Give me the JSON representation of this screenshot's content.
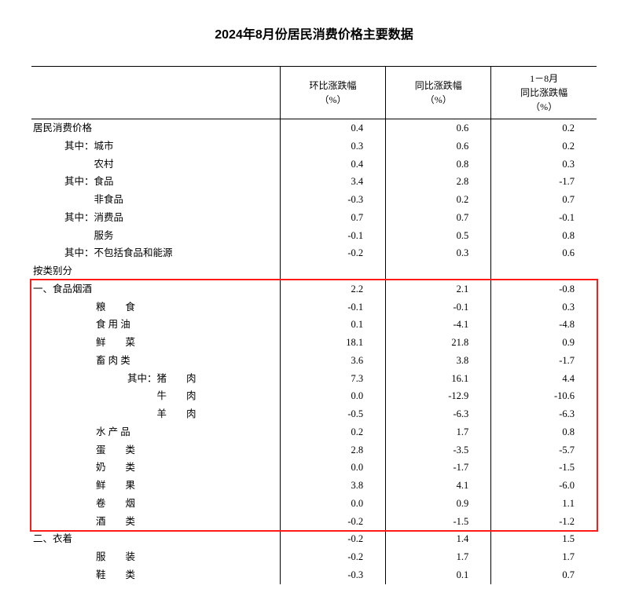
{
  "title": "2024年8月份居民消费价格主要数据",
  "columns": [
    "环比涨跌幅\n（%）",
    "同比涨跌幅\n（%）",
    "1－8月\n同比涨跌幅\n（%）"
  ],
  "rows": [
    {
      "label": "居民消费价格",
      "indent": 0,
      "v": [
        "0.4",
        "0.6",
        "0.2"
      ]
    },
    {
      "label": "其中：城市",
      "indent": 1,
      "v": [
        "0.3",
        "0.6",
        "0.2"
      ]
    },
    {
      "label": "　　　农村",
      "indent": 1,
      "v": [
        "0.4",
        "0.8",
        "0.3"
      ]
    },
    {
      "label": "其中：食品",
      "indent": 1,
      "v": [
        "3.4",
        "2.8",
        "-1.7"
      ]
    },
    {
      "label": "　　　非食品",
      "indent": 1,
      "v": [
        "-0.3",
        "0.2",
        "0.7"
      ]
    },
    {
      "label": "其中：消费品",
      "indent": 1,
      "v": [
        "0.7",
        "0.7",
        "-0.1"
      ]
    },
    {
      "label": "　　　服务",
      "indent": 1,
      "v": [
        "-0.1",
        "0.5",
        "0.8"
      ]
    },
    {
      "label": "其中：不包括食品和能源",
      "indent": 1,
      "v": [
        "-0.2",
        "0.3",
        "0.6"
      ]
    },
    {
      "label": "按类别分",
      "indent": 0,
      "v": [
        "",
        "",
        ""
      ]
    },
    {
      "label": "一、食品烟酒",
      "indent": 0,
      "v": [
        "2.2",
        "2.1",
        "-0.8"
      ]
    },
    {
      "label": "粮　　食",
      "indent": 2,
      "v": [
        "-0.1",
        "-0.1",
        "0.3"
      ]
    },
    {
      "label": "食 用 油",
      "indent": 2,
      "v": [
        "0.1",
        "-4.1",
        "-4.8"
      ]
    },
    {
      "label": "鲜　　菜",
      "indent": 2,
      "v": [
        "18.1",
        "21.8",
        "0.9"
      ]
    },
    {
      "label": "畜 肉 类",
      "indent": 2,
      "v": [
        "3.6",
        "3.8",
        "-1.7"
      ]
    },
    {
      "label": "其中：猪　　肉",
      "indent": 3,
      "v": [
        "7.3",
        "16.1",
        "4.4"
      ]
    },
    {
      "label": "　　　牛　　肉",
      "indent": 3,
      "v": [
        "0.0",
        "-12.9",
        "-10.6"
      ]
    },
    {
      "label": "　　　羊　　肉",
      "indent": 3,
      "v": [
        "-0.5",
        "-6.3",
        "-6.3"
      ]
    },
    {
      "label": "水 产 品",
      "indent": 2,
      "v": [
        "0.2",
        "1.7",
        "0.8"
      ]
    },
    {
      "label": "蛋　　类",
      "indent": 2,
      "v": [
        "2.8",
        "-3.5",
        "-5.7"
      ]
    },
    {
      "label": "奶　　类",
      "indent": 2,
      "v": [
        "0.0",
        "-1.7",
        "-1.5"
      ]
    },
    {
      "label": "鲜　　果",
      "indent": 2,
      "v": [
        "3.8",
        "4.1",
        "-6.0"
      ]
    },
    {
      "label": "卷　　烟",
      "indent": 2,
      "v": [
        "0.0",
        "0.9",
        "1.1"
      ]
    },
    {
      "label": "酒　　类",
      "indent": 2,
      "v": [
        "-0.2",
        "-1.5",
        "-1.2"
      ]
    },
    {
      "label": "二、衣着",
      "indent": 0,
      "v": [
        "-0.2",
        "1.4",
        "1.5"
      ]
    },
    {
      "label": "服　　装",
      "indent": 2,
      "v": [
        "-0.2",
        "1.7",
        "1.7"
      ]
    },
    {
      "label": "鞋　　类",
      "indent": 2,
      "v": [
        "-0.3",
        "0.1",
        "0.7"
      ]
    }
  ],
  "highlight": {
    "from_row": 9,
    "to_row": 22,
    "color": "#ff1a1a"
  },
  "style": {
    "background_color": "#ffffff",
    "text_color": "#000000",
    "border_color": "#000000",
    "title_fontsize": 16,
    "body_fontsize": 12.5
  }
}
